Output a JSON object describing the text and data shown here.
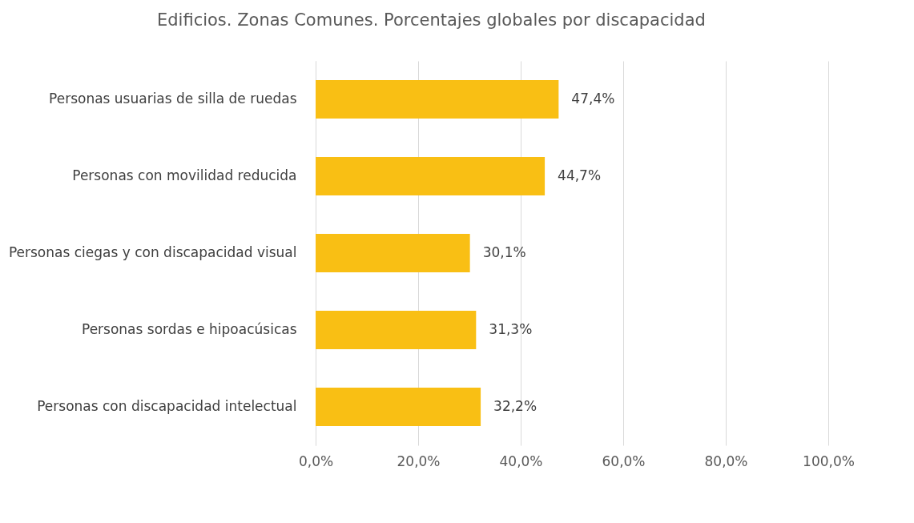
{
  "chart_data": {
    "type": "bar",
    "orientation": "horizontal",
    "title": "Edificios.  Zonas Comunes.  Porcentajes globales por discapacidad",
    "categories": [
      "Personas usuarias de silla de ruedas",
      "Personas con movilidad reducida",
      "Personas ciegas y con discapacidad visual",
      "Personas sordas e hipoacúsicas",
      "Personas con discapacidad intelectual"
    ],
    "values": [
      47.4,
      44.7,
      30.1,
      31.3,
      32.2
    ],
    "value_labels": [
      "47,4%",
      "44,7%",
      "30,1%",
      "31,3%",
      "32,2%"
    ],
    "color": "#f9bf14",
    "xlim": [
      0,
      100
    ],
    "xticks": [
      {
        "value": 0,
        "label": "0,0%"
      },
      {
        "value": 20,
        "label": "20,0%"
      },
      {
        "value": 40,
        "label": "40,0%"
      },
      {
        "value": 60,
        "label": "60,0%"
      },
      {
        "value": 80,
        "label": "80,0%"
      },
      {
        "value": 100,
        "label": "100,0%"
      }
    ],
    "grid": "x"
  }
}
